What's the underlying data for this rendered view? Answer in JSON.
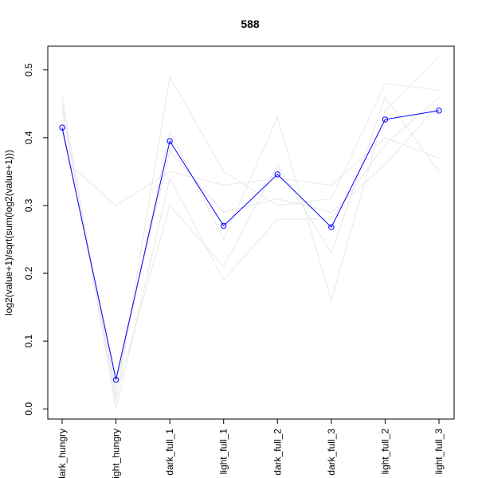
{
  "chart_data": {
    "type": "line",
    "title": "588",
    "ylabel": "log2(value+1)/sqrt(sum(log2(value+1)))",
    "xlabel": "",
    "categories": [
      "dark_hungry",
      "light_hungry",
      "dark_full_1",
      "light_full_1",
      "dark_full_2",
      "dark_full_3",
      "light_full_2",
      "light_full_3"
    ],
    "ylim": [
      -0.015,
      0.535
    ],
    "yticks": [
      0.0,
      0.1,
      0.2,
      0.3,
      0.4,
      0.5
    ],
    "ytick_labels": [
      "0.0",
      "0.1",
      "0.2",
      "0.3",
      "0.4",
      "0.5"
    ],
    "grid": false,
    "colors": {
      "highlight": "#0000ff",
      "background": "#e8e8e8"
    },
    "highlight_series": {
      "values": [
        0.415,
        0.043,
        0.395,
        0.27,
        0.346,
        0.268,
        0.427,
        0.44
      ]
    },
    "background_series": [
      {
        "values": [
          0.46,
          0.01,
          0.49,
          0.35,
          0.3,
          0.31,
          0.48,
          0.47
        ]
      },
      {
        "values": [
          0.42,
          0.03,
          0.41,
          0.25,
          0.43,
          0.16,
          0.44,
          0.52
        ]
      },
      {
        "values": [
          0.37,
          0.3,
          0.35,
          0.33,
          0.34,
          0.33,
          0.4,
          0.37
        ]
      },
      {
        "values": [
          0.44,
          0.02,
          0.3,
          0.21,
          0.36,
          0.23,
          0.46,
          0.35
        ]
      },
      {
        "values": [
          0.45,
          0.0,
          0.34,
          0.19,
          0.28,
          0.28,
          0.39,
          0.46
        ]
      },
      {
        "values": [
          0.41,
          0.05,
          0.38,
          0.29,
          0.31,
          0.29,
          0.36,
          0.45
        ]
      }
    ]
  }
}
